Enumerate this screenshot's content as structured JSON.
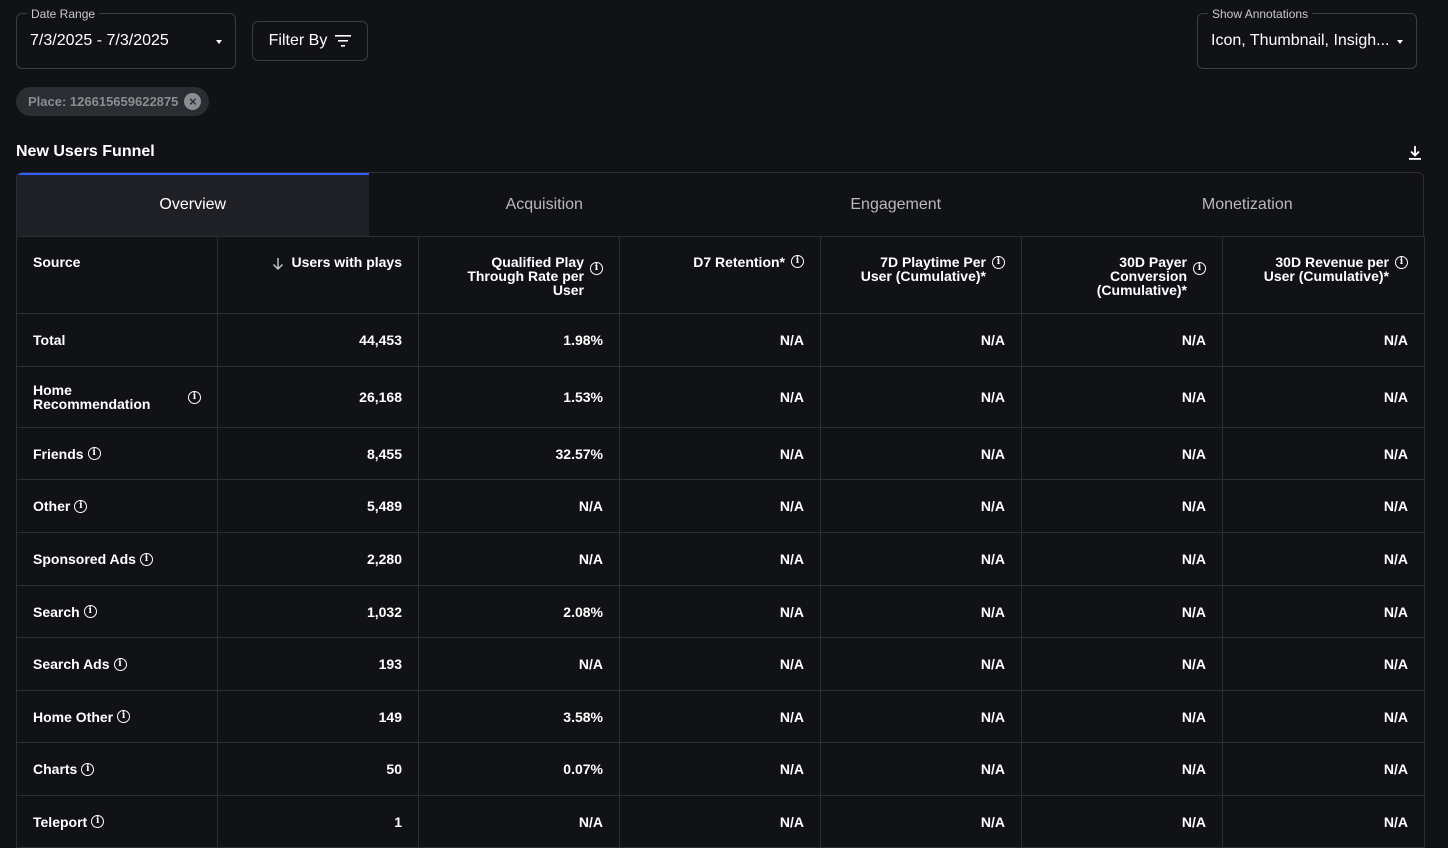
{
  "filters": {
    "date_range": {
      "label": "Date Range",
      "value": "7/3/2025 - 7/3/2025"
    },
    "filter_by": {
      "label": "Filter By"
    },
    "annotations": {
      "label": "Show Annotations",
      "value": "Icon, Thumbnail, Insigh..."
    },
    "chip": {
      "label": "Place: 126615659622875"
    }
  },
  "section": {
    "title": "New Users Funnel"
  },
  "tabs": [
    {
      "label": "Overview",
      "active": true
    },
    {
      "label": "Acquisition"
    },
    {
      "label": "Engagement"
    },
    {
      "label": "Monetization"
    }
  ],
  "table": {
    "headers": {
      "source": "Source",
      "users": "Users with plays",
      "qptr": "Qualified Play Through Rate per User",
      "d7": "D7 Retention*",
      "playtime": "7D Playtime Per User (Cumulative)*",
      "payer": "30D Payer Conversion (Cumulative)*",
      "revenue": "30D Revenue per User (Cumulative)*"
    },
    "rows": [
      {
        "source": "Total",
        "users": "44,453",
        "qptr": "1.98%",
        "d7": "N/A",
        "playtime": "N/A",
        "payer": "N/A",
        "revenue": "N/A"
      },
      {
        "source": "Home Recommendation",
        "users": "26,168",
        "qptr": "1.53%",
        "d7": "N/A",
        "playtime": "N/A",
        "payer": "N/A",
        "revenue": "N/A"
      },
      {
        "source": "Friends",
        "users": "8,455",
        "qptr": "32.57%",
        "d7": "N/A",
        "playtime": "N/A",
        "payer": "N/A",
        "revenue": "N/A"
      },
      {
        "source": "Other",
        "users": "5,489",
        "qptr": "N/A",
        "d7": "N/A",
        "playtime": "N/A",
        "payer": "N/A",
        "revenue": "N/A"
      },
      {
        "source": "Sponsored Ads",
        "users": "2,280",
        "qptr": "N/A",
        "d7": "N/A",
        "playtime": "N/A",
        "payer": "N/A",
        "revenue": "N/A"
      },
      {
        "source": "Search",
        "users": "1,032",
        "qptr": "2.08%",
        "d7": "N/A",
        "playtime": "N/A",
        "payer": "N/A",
        "revenue": "N/A"
      },
      {
        "source": "Search Ads",
        "users": "193",
        "qptr": "N/A",
        "d7": "N/A",
        "playtime": "N/A",
        "payer": "N/A",
        "revenue": "N/A"
      },
      {
        "source": "Home Other",
        "users": "149",
        "qptr": "3.58%",
        "d7": "N/A",
        "playtime": "N/A",
        "payer": "N/A",
        "revenue": "N/A"
      },
      {
        "source": "Charts",
        "users": "50",
        "qptr": "0.07%",
        "d7": "N/A",
        "playtime": "N/A",
        "payer": "N/A",
        "revenue": "N/A"
      },
      {
        "source": "Teleport",
        "users": "1",
        "qptr": "N/A",
        "d7": "N/A",
        "playtime": "N/A",
        "payer": "N/A",
        "revenue": "N/A"
      }
    ]
  },
  "colors": {
    "background": "#111216",
    "accent": "#335fff",
    "border": "#2c2e34"
  }
}
